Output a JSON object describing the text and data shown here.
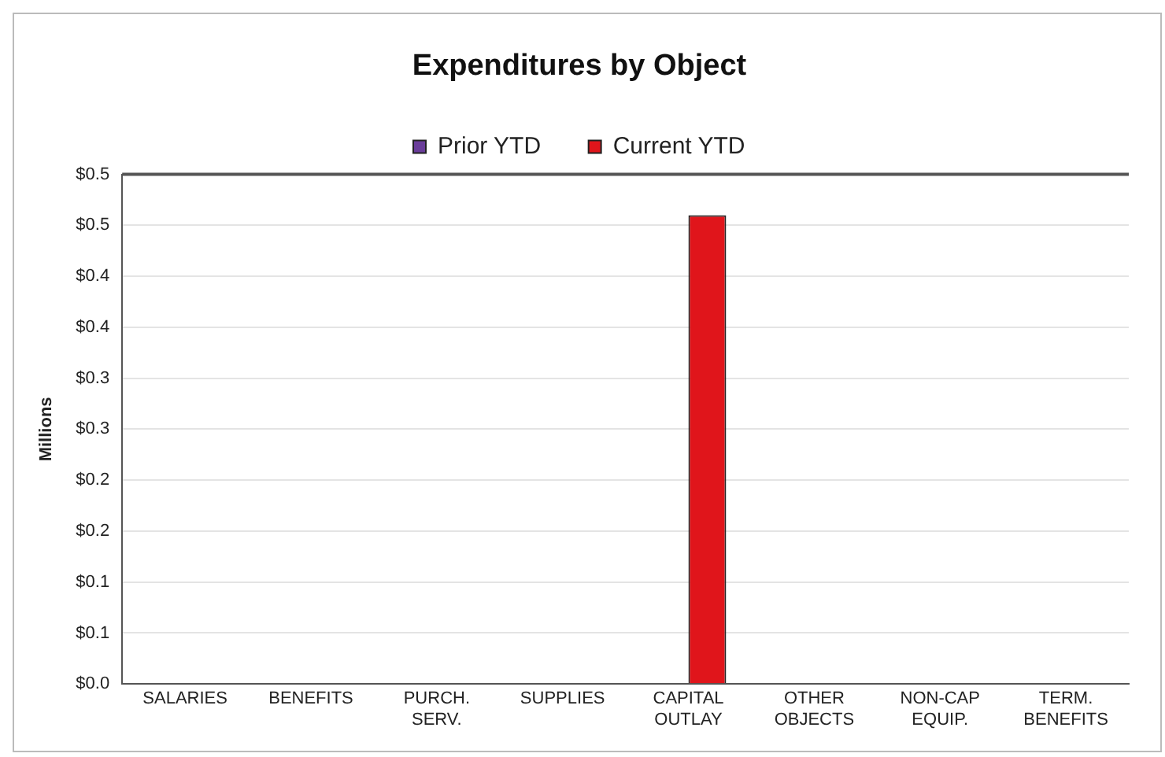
{
  "chart_data": {
    "type": "bar",
    "title": "Expenditures by Object",
    "ylabel": "Millions",
    "categories": [
      "SALARIES",
      "BENEFITS",
      "PURCH. SERV.",
      "SUPPLIES",
      "CAPITAL OUTLAY",
      "OTHER OBJECTS",
      "NON-CAP EQUIP.",
      "TERM. BENEFITS"
    ],
    "series": [
      {
        "name": "Prior YTD",
        "color": "#6a3d9a",
        "values": [
          0,
          0,
          0,
          0,
          0,
          0,
          0,
          0
        ]
      },
      {
        "name": "Current YTD",
        "color": "#e0151b",
        "values": [
          0,
          0,
          0,
          0,
          0.46,
          0,
          0,
          0
        ]
      }
    ],
    "ylim": [
      0,
      0.5
    ],
    "yticks": [
      {
        "value": 0,
        "label": "$0.0"
      },
      {
        "value": 0.05,
        "label": "$0.1"
      },
      {
        "value": 0.1,
        "label": "$0.1"
      },
      {
        "value": 0.15,
        "label": "$0.2"
      },
      {
        "value": 0.2,
        "label": "$0.2"
      },
      {
        "value": 0.25,
        "label": "$0.3"
      },
      {
        "value": 0.3,
        "label": "$0.3"
      },
      {
        "value": 0.35,
        "label": "$0.4"
      },
      {
        "value": 0.4,
        "label": "$0.4"
      },
      {
        "value": 0.45,
        "label": "$0.5"
      },
      {
        "value": 0.5,
        "label": "$0.5"
      }
    ],
    "grid": "y",
    "legend": "top"
  }
}
